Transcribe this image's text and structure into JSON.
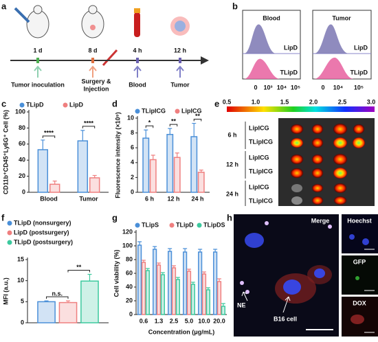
{
  "panel_labels": [
    "a",
    "b",
    "c",
    "d",
    "e",
    "f",
    "g",
    "h"
  ],
  "timeline": {
    "steps": [
      {
        "time": "1 d",
        "event": [
          "Tumor inoculation"
        ]
      },
      {
        "time": "8 d",
        "event": [
          "Surgery &",
          "Injection"
        ]
      },
      {
        "time": "4 h",
        "event": [
          "Blood"
        ]
      },
      {
        "time": "12 h",
        "event": [
          "Tumor"
        ]
      }
    ]
  },
  "flow": [
    {
      "title": "Blood",
      "upper": "LipD",
      "lower": "TLipD",
      "axis_labels": [
        "0",
        "10³",
        "10⁴",
        "10⁵"
      ]
    },
    {
      "title": "Tumor",
      "upper": "LipD",
      "lower": "TLipD",
      "axis_labels": [
        "0",
        "10⁴",
        "10⁵"
      ]
    }
  ],
  "chart_data": [
    {
      "type": "bar",
      "ylabel": "CD11b⁺CD45⁺Ly6G⁺ Cell (%)",
      "categories": [
        "Blood",
        "Tumor"
      ],
      "series": [
        {
          "name": "TLipD",
          "color": "#4a8fd8",
          "values": [
            53,
            64
          ],
          "errors": [
            12,
            13
          ]
        },
        {
          "name": "LipD",
          "color": "#ef7f7f",
          "values": [
            10,
            18
          ],
          "errors": [
            4,
            3
          ]
        }
      ],
      "ylim": [
        0,
        100
      ],
      "yticks": [
        0,
        20,
        40,
        60,
        80,
        100
      ],
      "annotations": [
        "****",
        "****"
      ]
    },
    {
      "type": "bar",
      "ylabel": "Fluorescence intensity (×10⁹)",
      "categories": [
        "6 h",
        "12 h",
        "24 h"
      ],
      "series": [
        {
          "name": "TLipICG",
          "color": "#4a8fd8",
          "values": [
            7.3,
            7.8,
            7.5
          ],
          "errors": [
            1.1,
            0.8,
            1.8
          ]
        },
        {
          "name": "LipICG",
          "color": "#ef7f7f",
          "values": [
            4.4,
            4.7,
            2.7
          ],
          "errors": [
            0.6,
            0.6,
            0.3
          ]
        }
      ],
      "ylim": [
        0,
        10
      ],
      "yticks": [
        0,
        2,
        4,
        6,
        8,
        10
      ],
      "annotations": [
        "*",
        "**",
        "**"
      ]
    },
    {
      "type": "bar",
      "ylabel": "MFI (a.u.)",
      "categories": [
        null
      ],
      "series": [
        {
          "name": "TLipD (nonsurgery)",
          "color": "#4a8fd8",
          "values": [
            5.0
          ],
          "errors": [
            0.2
          ]
        },
        {
          "name": "LipD (postsurgery)",
          "color": "#ef7f7f",
          "values": [
            4.8
          ],
          "errors": [
            0.4
          ]
        },
        {
          "name": "TLipD (postsurgery)",
          "color": "#3cc99e",
          "values": [
            9.9
          ],
          "errors": [
            1.6
          ]
        }
      ],
      "ylim": [
        0,
        15
      ],
      "yticks": [
        0,
        5,
        10,
        15
      ],
      "annotations": [
        "n.s.",
        "**"
      ]
    },
    {
      "type": "bar",
      "ylabel": "Cell viability (%)",
      "xlabel": "Concentration (μg/mL)",
      "categories": [
        "0.6",
        "1.3",
        "2.5",
        "5.0",
        "10.0",
        "20.0"
      ],
      "series": [
        {
          "name": "TLipS",
          "color": "#4a8fd8",
          "values": [
            101,
            95,
            92,
            91,
            91,
            91
          ],
          "errors": [
            5,
            4,
            4,
            5,
            4,
            4
          ]
        },
        {
          "name": "TLipD",
          "color": "#ef7f7f",
          "values": [
            76,
            72,
            68,
            63,
            59,
            48
          ],
          "errors": [
            3,
            3,
            3,
            3,
            3,
            4
          ]
        },
        {
          "name": "TLipDS",
          "color": "#3cc99e",
          "values": [
            64,
            58,
            51,
            44,
            36,
            12
          ],
          "errors": [
            3,
            3,
            3,
            3,
            3,
            4
          ]
        }
      ],
      "ylim": [
        0,
        120
      ],
      "yticks": [
        0,
        20,
        40,
        60,
        80,
        100,
        120
      ],
      "annotations": []
    }
  ],
  "imaging": {
    "colorbar": {
      "lim": [
        0.5,
        3
      ],
      "ticks": [
        {
          "value": 0.5,
          "label": "0.5"
        },
        {
          "value": 1,
          "label": "1.0"
        },
        {
          "value": 1.5,
          "label": "1.5"
        },
        {
          "value": 2,
          "label": "2.0"
        },
        {
          "value": 2.5,
          "label": "2.5"
        },
        {
          "value": 3,
          "label": "3.0"
        }
      ]
    },
    "rows": [
      {
        "time": "6 h",
        "labels": [
          "LipICG",
          "TLipICG"
        ]
      },
      {
        "time": "12 h",
        "labels": [
          "LipICG",
          "TLipICG"
        ]
      },
      {
        "time": "24 h",
        "labels": [
          "LipICG",
          "TLipICG"
        ]
      }
    ]
  },
  "microscopy": {
    "merge": "Merge",
    "annotations": [
      "NE",
      "B16 cell"
    ],
    "channels": [
      "Hoechst",
      "GFP",
      "DOX"
    ]
  }
}
